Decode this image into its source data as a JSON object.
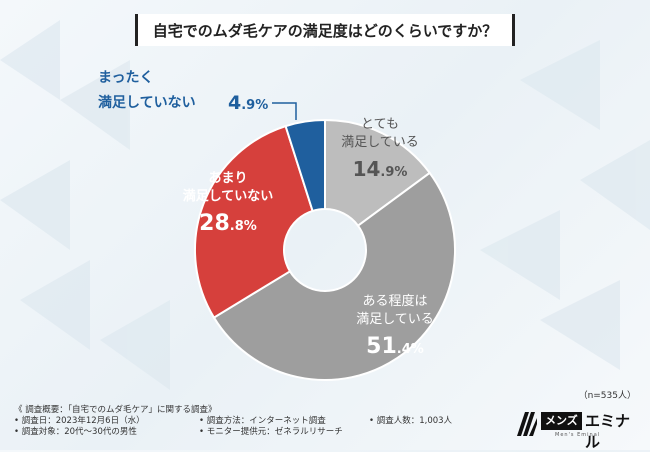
{
  "title": "自宅でのムダ毛ケアの満足度はどのくらいですか？",
  "chart_data": {
    "type": "pie",
    "title": "自宅でのムダ毛ケアの満足度はどのくらいですか？",
    "slices": [
      {
        "name": "とても満足している",
        "line1": "とても",
        "line2": "満足している",
        "value": 14.9,
        "int": "14",
        "dec": ".9",
        "pct": "%",
        "color": "#bdbdbd",
        "label_color": "#555555"
      },
      {
        "name": "ある程度は満足している",
        "line1": "ある程度は",
        "line2": "満足している",
        "value": 51.4,
        "int": "51",
        "dec": ".4",
        "pct": "%",
        "color": "#9e9e9e",
        "label_color": "#ffffff"
      },
      {
        "name": "あまり満足していない",
        "line1": "あまり",
        "line2": "満足していない",
        "value": 28.8,
        "int": "28",
        "dec": ".8",
        "pct": "%",
        "color": "#d6403c",
        "label_color": "#ffffff"
      },
      {
        "name": "まったく満足していない",
        "line1": "まったく",
        "line2": "満足していない",
        "value": 4.9,
        "int": "4",
        "dec": ".9",
        "pct": "%",
        "color": "#1f5f9e",
        "label_color": "#1f5f9e"
      }
    ]
  },
  "sample_size": "（n=535人）",
  "notes": {
    "overview": "《 調査概要：「自宅でのムダ毛ケア」に関する調査》",
    "date": "• 調査日：2023年12月6日（水）",
    "method": "• 調査方法：インターネット調査",
    "count": "• 調査人数：1,003人",
    "target": "• 調査対象：20代～30代の男性",
    "provider": "• モニター提供元：ゼネラルリサーチ"
  },
  "logo": {
    "box": "メンズ",
    "text": "エミナル",
    "sub": "Men's Eminal"
  }
}
